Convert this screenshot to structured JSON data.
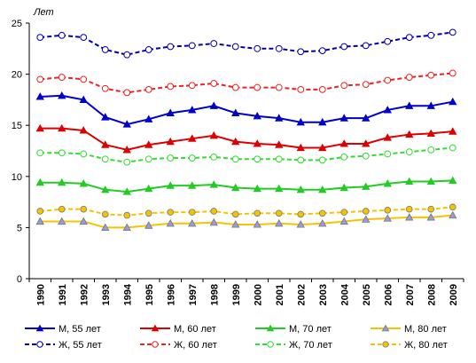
{
  "chart_data": {
    "type": "line",
    "title": "",
    "ylabel": "Лет",
    "xlabel": "",
    "ylim": [
      0,
      25
    ],
    "yticks": [
      0,
      5,
      10,
      15,
      20,
      25
    ],
    "grid": false,
    "legend_position": "bottom",
    "categories": [
      "1990",
      "1991",
      "1992",
      "1993",
      "1994",
      "1995",
      "1996",
      "1997",
      "1998",
      "1999",
      "2000",
      "2001",
      "2002",
      "2003",
      "2004",
      "2005",
      "2006",
      "2007",
      "2008",
      "2009"
    ],
    "series": [
      {
        "name": "М, 55 лет",
        "color": "#0000cc",
        "style": "solid",
        "marker": "triangle",
        "values": [
          17.8,
          17.9,
          17.5,
          15.8,
          15.1,
          15.6,
          16.2,
          16.5,
          16.9,
          16.2,
          15.9,
          15.7,
          15.3,
          15.3,
          15.7,
          15.7,
          16.5,
          16.9,
          16.9,
          17.3
        ]
      },
      {
        "name": "М, 60 лет",
        "color": "#dd0000",
        "style": "solid",
        "marker": "triangle",
        "values": [
          14.7,
          14.7,
          14.5,
          13.1,
          12.6,
          13.1,
          13.4,
          13.7,
          14.0,
          13.4,
          13.2,
          13.1,
          12.8,
          12.8,
          13.2,
          13.2,
          13.8,
          14.1,
          14.2,
          14.4
        ]
      },
      {
        "name": "М, 70 лет",
        "color": "#22cc22",
        "style": "solid",
        "marker": "triangle",
        "values": [
          9.4,
          9.4,
          9.3,
          8.7,
          8.5,
          8.8,
          9.1,
          9.1,
          9.2,
          8.9,
          8.8,
          8.8,
          8.7,
          8.7,
          8.9,
          9.0,
          9.3,
          9.5,
          9.5,
          9.6
        ]
      },
      {
        "name": "М, 80 лет",
        "color": "#f5c400",
        "style": "solid",
        "marker": "triangle-light",
        "values": [
          5.6,
          5.6,
          5.6,
          5.0,
          5.0,
          5.2,
          5.4,
          5.4,
          5.5,
          5.3,
          5.3,
          5.4,
          5.3,
          5.4,
          5.6,
          5.8,
          5.9,
          6.0,
          6.0,
          6.2
        ]
      },
      {
        "name": "Ж, 55 лет",
        "color": "#0000aa",
        "style": "dashed",
        "marker": "circle-open",
        "values": [
          23.6,
          23.8,
          23.6,
          22.4,
          21.9,
          22.4,
          22.7,
          22.8,
          23.0,
          22.7,
          22.5,
          22.5,
          22.2,
          22.3,
          22.7,
          22.8,
          23.2,
          23.6,
          23.8,
          24.1
        ]
      },
      {
        "name": "Ж, 60 лет",
        "color": "#ee2222",
        "style": "dashed",
        "marker": "circle-open",
        "values": [
          19.5,
          19.7,
          19.5,
          18.6,
          18.2,
          18.5,
          18.8,
          18.9,
          19.1,
          18.7,
          18.7,
          18.7,
          18.5,
          18.5,
          18.9,
          19.0,
          19.4,
          19.7,
          19.9,
          20.1
        ]
      },
      {
        "name": "Ж, 70 лет",
        "color": "#33dd33",
        "style": "dashed",
        "marker": "circle-open",
        "values": [
          12.3,
          12.3,
          12.2,
          11.7,
          11.4,
          11.7,
          11.8,
          11.8,
          11.9,
          11.7,
          11.7,
          11.7,
          11.6,
          11.6,
          11.9,
          12.0,
          12.2,
          12.4,
          12.6,
          12.8
        ]
      },
      {
        "name": "Ж, 80 лет",
        "color": "#f5c400",
        "style": "dashed",
        "marker": "circle-filled",
        "values": [
          6.6,
          6.8,
          6.8,
          6.3,
          6.2,
          6.4,
          6.5,
          6.5,
          6.6,
          6.3,
          6.4,
          6.4,
          6.3,
          6.4,
          6.5,
          6.6,
          6.7,
          6.8,
          6.8,
          7.0
        ]
      }
    ]
  }
}
